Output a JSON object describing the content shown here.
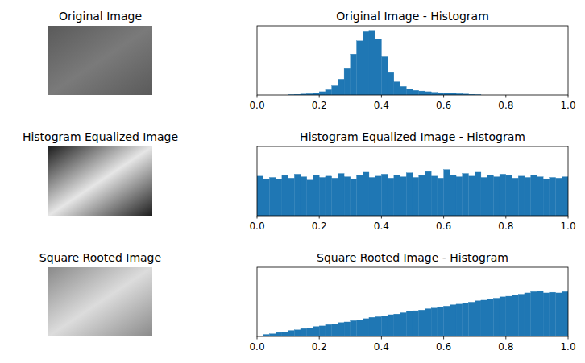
{
  "images": [
    {
      "title": "Original Image"
    },
    {
      "title": "Histogram Equalized Image"
    },
    {
      "title": "Square Rooted Image"
    }
  ],
  "chart_data": [
    {
      "type": "histogram",
      "title": "Original Image - Histogram",
      "color": "#1f77b4",
      "tick_labels": "x",
      "xlim": [
        0,
        1
      ],
      "ylim": [
        0,
        105
      ],
      "xticks": [
        {
          "value": 0,
          "label": "0.0"
        },
        {
          "value": 0.2,
          "label": "0.2"
        },
        {
          "value": 0.4,
          "label": "0.4"
        },
        {
          "value": 0.6,
          "label": "0.6"
        },
        {
          "value": 0.8,
          "label": "0.8"
        },
        {
          "value": 1,
          "label": "1.0"
        }
      ],
      "bins": [
        0,
        0.02,
        0.04,
        0.06,
        0.08,
        0.1,
        0.12,
        0.14,
        0.16,
        0.18,
        0.2,
        0.22,
        0.24,
        0.26,
        0.28,
        0.3,
        0.32,
        0.34,
        0.36,
        0.38,
        0.4,
        0.42,
        0.44,
        0.46,
        0.48,
        0.5,
        0.52,
        0.54,
        0.56,
        0.58,
        0.6,
        0.62,
        0.64,
        0.66,
        0.68,
        0.7,
        0.72,
        0.74,
        0.76,
        0.78,
        0.8,
        0.82,
        0.84,
        0.86,
        0.88,
        0.9,
        0.92,
        0.94,
        0.96,
        0.98,
        1
      ],
      "values": [
        0,
        0,
        0,
        0,
        0,
        0.5,
        1,
        1.5,
        2,
        3,
        5,
        8,
        14,
        24,
        40,
        62,
        82,
        96,
        98,
        85,
        58,
        34,
        20,
        13,
        9,
        7,
        6,
        5,
        4,
        3.5,
        3,
        2.5,
        2,
        1.5,
        1,
        0.5,
        0,
        0,
        0,
        0,
        0,
        0,
        0,
        0,
        0,
        0,
        0,
        0,
        0,
        0
      ]
    },
    {
      "type": "histogram",
      "title": "Histogram Equalized Image - Histogram",
      "color": "#1f77b4",
      "tick_labels": "x",
      "xlim": [
        0,
        1
      ],
      "ylim": [
        0,
        105
      ],
      "xticks": [
        {
          "value": 0,
          "label": "0.0"
        },
        {
          "value": 0.2,
          "label": "0.2"
        },
        {
          "value": 0.4,
          "label": "0.4"
        },
        {
          "value": 0.6,
          "label": "0.6"
        },
        {
          "value": 0.8,
          "label": "0.8"
        },
        {
          "value": 1,
          "label": "1.0"
        }
      ],
      "bins": [
        0,
        0.02,
        0.04,
        0.06,
        0.08,
        0.1,
        0.12,
        0.14,
        0.16,
        0.18,
        0.2,
        0.22,
        0.24,
        0.26,
        0.28,
        0.3,
        0.32,
        0.34,
        0.36,
        0.38,
        0.4,
        0.42,
        0.44,
        0.46,
        0.48,
        0.5,
        0.52,
        0.54,
        0.56,
        0.58,
        0.6,
        0.62,
        0.64,
        0.66,
        0.68,
        0.7,
        0.72,
        0.74,
        0.76,
        0.78,
        0.8,
        0.82,
        0.84,
        0.86,
        0.88,
        0.9,
        0.92,
        0.94,
        0.96,
        0.98,
        1
      ],
      "values": [
        60,
        56,
        58,
        55,
        61,
        57,
        63,
        59,
        54,
        62,
        58,
        60,
        57,
        64,
        59,
        56,
        61,
        66,
        58,
        60,
        63,
        57,
        62,
        59,
        65,
        58,
        61,
        67,
        60,
        57,
        70,
        62,
        59,
        64,
        60,
        66,
        58,
        62,
        59,
        63,
        61,
        57,
        60,
        58,
        62,
        59,
        56,
        58,
        57,
        59
      ]
    },
    {
      "type": "histogram",
      "title": "Square Rooted Image - Histogram",
      "color": "#1f77b4",
      "tick_labels": "x",
      "xlim": [
        0,
        1
      ],
      "ylim": [
        0,
        105
      ],
      "xticks": [
        {
          "value": 0,
          "label": "0.0"
        },
        {
          "value": 0.2,
          "label": "0.2"
        },
        {
          "value": 0.4,
          "label": "0.4"
        },
        {
          "value": 0.6,
          "label": "0.6"
        },
        {
          "value": 0.8,
          "label": "0.8"
        },
        {
          "value": 1,
          "label": "1.0"
        }
      ],
      "bins": [
        0,
        0.02,
        0.04,
        0.06,
        0.08,
        0.1,
        0.12,
        0.14,
        0.16,
        0.18,
        0.2,
        0.22,
        0.24,
        0.26,
        0.28,
        0.3,
        0.32,
        0.34,
        0.36,
        0.38,
        0.4,
        0.42,
        0.44,
        0.46,
        0.48,
        0.5,
        0.52,
        0.54,
        0.56,
        0.58,
        0.6,
        0.62,
        0.64,
        0.66,
        0.68,
        0.7,
        0.72,
        0.74,
        0.76,
        0.78,
        0.8,
        0.82,
        0.84,
        0.86,
        0.88,
        0.9,
        0.92,
        0.94,
        0.96,
        0.98,
        1
      ],
      "values": [
        1,
        3,
        4,
        6,
        7,
        9,
        10,
        12,
        13,
        15,
        16,
        18,
        19,
        21,
        22,
        24,
        25,
        27,
        29,
        30,
        31,
        33,
        34,
        36,
        38,
        39,
        40,
        42,
        43,
        45,
        46,
        48,
        49,
        51,
        52,
        54,
        55,
        57,
        58,
        60,
        61,
        63,
        64,
        66,
        68,
        69,
        66,
        67,
        66,
        68
      ]
    }
  ]
}
